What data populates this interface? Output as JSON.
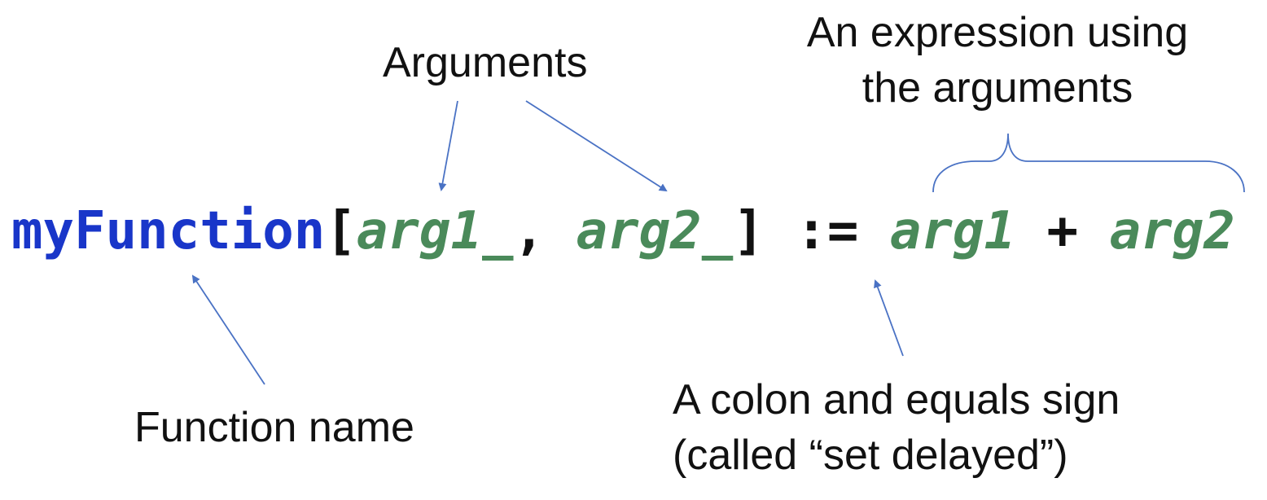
{
  "labels": {
    "arguments": "Arguments",
    "expression_line1": "An expression using",
    "expression_line2": "the arguments",
    "function_name": "Function name",
    "set_delayed_line1": "A colon and equals sign",
    "set_delayed_line2": "(called “set delayed”)"
  },
  "code": {
    "function_name": "myFunction",
    "open_bracket": "[",
    "arg1_pattern": "arg1_",
    "comma": ", ",
    "arg2_pattern": "arg2_",
    "close_bracket": "]",
    "set_delayed": " := ",
    "arg1": "arg1",
    "plus": " + ",
    "arg2": "arg2"
  },
  "colors": {
    "function": "#1936c9",
    "argument": "#4a8a5a",
    "punctuation": "#111111",
    "annotation_arrow": "#4a72c4"
  }
}
